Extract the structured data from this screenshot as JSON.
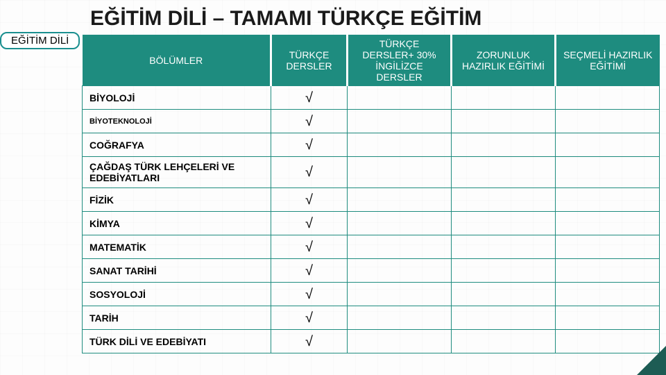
{
  "title": "EĞİTİM DİLİ – TAMAMI TÜRKÇE EĞİTİM",
  "tag_label": "EĞİTİM DİLİ",
  "colors": {
    "header_bg": "#1e8c7f",
    "header_sep": "#ffffff",
    "row_border": "#1e8c7f",
    "corner": "#1d5c54"
  },
  "columns": [
    {
      "key": "dept",
      "label": "BÖLÜMLER"
    },
    {
      "key": "c1",
      "label": "TÜRKÇE DERSLER"
    },
    {
      "key": "c2",
      "label": "TÜRKÇE DERSLER+ 30% İNGİLİZCE DERSLER"
    },
    {
      "key": "c3",
      "label": "ZORUNLUK HAZIRLIK EĞİTİMİ"
    },
    {
      "key": "c4",
      "label": "SEÇMELİ HAZIRLIK EĞİTİMİ"
    }
  ],
  "rows": [
    {
      "dept": "BİYOLOJİ",
      "c1": "√",
      "c2": "",
      "c3": "",
      "c4": "",
      "small": false
    },
    {
      "dept": "BİYOTEKNOLOJİ",
      "c1": "√",
      "c2": "",
      "c3": "",
      "c4": "",
      "small": true
    },
    {
      "dept": "COĞRAFYA",
      "c1": "√",
      "c2": "",
      "c3": "",
      "c4": "",
      "small": false
    },
    {
      "dept": "ÇAĞDAŞ TÜRK LEHÇELERİ VE EDEBİYATLARI",
      "c1": "√",
      "c2": "",
      "c3": "",
      "c4": "",
      "small": false
    },
    {
      "dept": "FİZİK",
      "c1": "√",
      "c2": "",
      "c3": "",
      "c4": "",
      "small": false
    },
    {
      "dept": "KİMYA",
      "c1": "√",
      "c2": "",
      "c3": "",
      "c4": "",
      "small": false
    },
    {
      "dept": "MATEMATİK",
      "c1": "√",
      "c2": "",
      "c3": "",
      "c4": "",
      "small": false
    },
    {
      "dept": "SANAT TARİHİ",
      "c1": "√",
      "c2": "",
      "c3": "",
      "c4": "",
      "small": false
    },
    {
      "dept": "SOSYOLOJİ",
      "c1": "√",
      "c2": "",
      "c3": "",
      "c4": "",
      "small": false
    },
    {
      "dept": "TARİH",
      "c1": "√",
      "c2": "",
      "c3": "",
      "c4": "",
      "small": false
    },
    {
      "dept": "TÜRK DİLİ VE EDEBİYATI",
      "c1": "√",
      "c2": "",
      "c3": "",
      "c4": "",
      "small": false
    }
  ]
}
